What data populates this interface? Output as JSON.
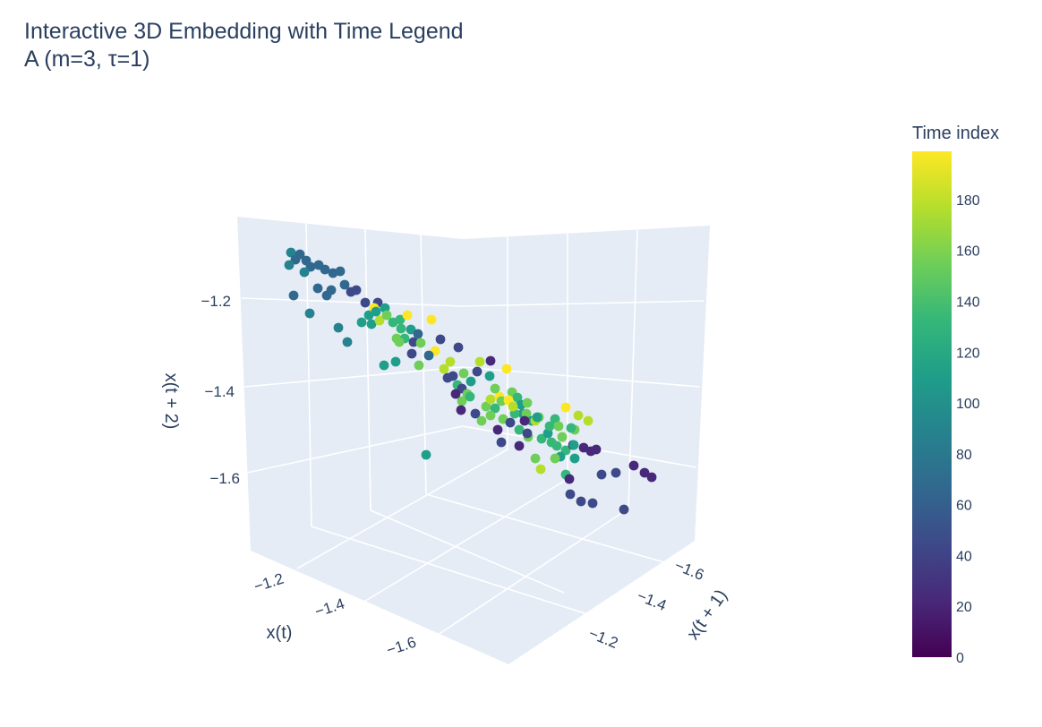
{
  "chart_data": {
    "type": "scatter3d",
    "title": "Interactive 3D Embedding with Time Legend",
    "subtitle": "A (m=3, τ=1)",
    "axes": {
      "x": {
        "label": "x(t)",
        "ticks": [
          "−1.2",
          "−1.4",
          "−1.6"
        ]
      },
      "y": {
        "label": "x(t + 1)",
        "ticks": [
          "−1.6",
          "−1.4",
          "−1.2"
        ]
      },
      "z": {
        "label": "x(t + 2)",
        "ticks": [
          "−1.2",
          "−1.4",
          "−1.6"
        ]
      }
    },
    "colorbar": {
      "title": "Time index",
      "ticks": [
        "180",
        "160",
        "140",
        "120",
        "100",
        "80",
        "60",
        "40",
        "20",
        "0"
      ],
      "range": [
        0,
        199
      ],
      "colorscale": "Viridis"
    },
    "background": "#e5ecf6",
    "marker_color_scale": [
      "#440154",
      "#482878",
      "#3e4989",
      "#31688e",
      "#26828e",
      "#1f9e89",
      "#35b779",
      "#6ece58",
      "#b5de2b",
      "#fde725"
    ]
  }
}
